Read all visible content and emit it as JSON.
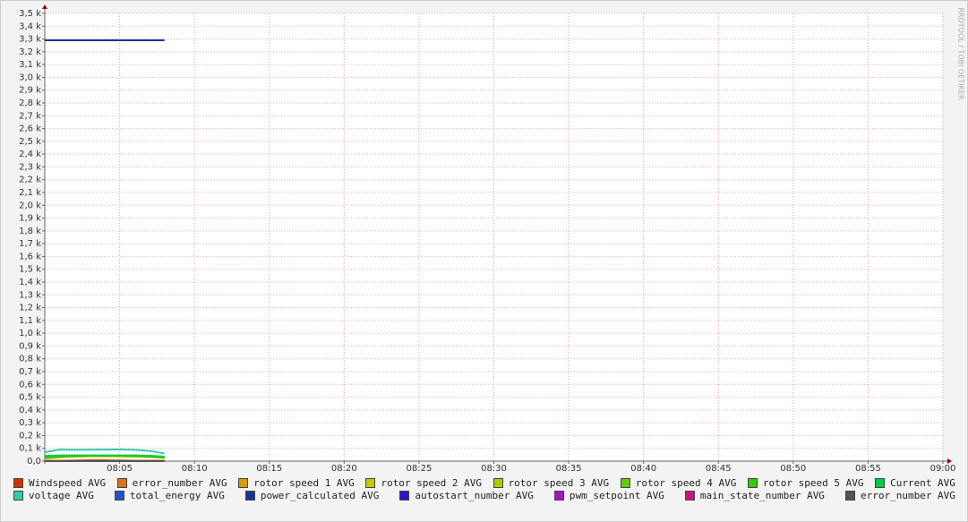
{
  "chart_data": {
    "type": "line",
    "watermark": "RRDTOOL / TOBI OETIKER",
    "x": [
      "08:00",
      "08:01",
      "08:02",
      "08:03",
      "08:04",
      "08:05",
      "08:06",
      "08:07",
      "08:08"
    ],
    "xlim": [
      "08:00",
      "09:00"
    ],
    "xticks": [
      "08:05",
      "08:10",
      "08:15",
      "08:20",
      "08:25",
      "08:30",
      "08:35",
      "08:40",
      "08:45",
      "08:50",
      "08:55",
      "09:00"
    ],
    "ylim": [
      0,
      3500
    ],
    "yticks": [
      {
        "value": 0,
        "label": "0,0"
      },
      {
        "value": 100,
        "label": "0,1 k"
      },
      {
        "value": 200,
        "label": "0,2 k"
      },
      {
        "value": 300,
        "label": "0,3 k"
      },
      {
        "value": 400,
        "label": "0,4 k"
      },
      {
        "value": 500,
        "label": "0,5 k"
      },
      {
        "value": 600,
        "label": "0,6 k"
      },
      {
        "value": 700,
        "label": "0,7 k"
      },
      {
        "value": 800,
        "label": "0,8 k"
      },
      {
        "value": 900,
        "label": "0,9 k"
      },
      {
        "value": 1000,
        "label": "1,0 k"
      },
      {
        "value": 1100,
        "label": "1,1 k"
      },
      {
        "value": 1200,
        "label": "1,2 k"
      },
      {
        "value": 1300,
        "label": "1,3 k"
      },
      {
        "value": 1400,
        "label": "1,4 k"
      },
      {
        "value": 1500,
        "label": "1,5 k"
      },
      {
        "value": 1600,
        "label": "1,6 k"
      },
      {
        "value": 1700,
        "label": "1,7 k"
      },
      {
        "value": 1800,
        "label": "1,8 k"
      },
      {
        "value": 1900,
        "label": "1,9 k"
      },
      {
        "value": 2000,
        "label": "2,0 k"
      },
      {
        "value": 2100,
        "label": "2,1 k"
      },
      {
        "value": 2200,
        "label": "2,2 k"
      },
      {
        "value": 2300,
        "label": "2,3 k"
      },
      {
        "value": 2400,
        "label": "2,4 k"
      },
      {
        "value": 2500,
        "label": "2,5 k"
      },
      {
        "value": 2600,
        "label": "2,6 k"
      },
      {
        "value": 2700,
        "label": "2,7 k"
      },
      {
        "value": 2800,
        "label": "2,8 k"
      },
      {
        "value": 2900,
        "label": "2,9 k"
      },
      {
        "value": 3000,
        "label": "3,0 k"
      },
      {
        "value": 3100,
        "label": "3,1 k"
      },
      {
        "value": 3200,
        "label": "3,2 k"
      },
      {
        "value": 3300,
        "label": "3,3 k"
      },
      {
        "value": 3400,
        "label": "3,4 k"
      },
      {
        "value": 3500,
        "label": "3,5 k"
      }
    ],
    "grid": true,
    "series": [
      {
        "name": "Windspeed AVG",
        "color": "#cc3300",
        "values": [
          3,
          3,
          4,
          6,
          6,
          4,
          3,
          3,
          3
        ]
      },
      {
        "name": "error_number AVG",
        "color": "#e07020",
        "values": [
          0,
          0,
          0,
          0,
          0,
          0,
          0,
          0,
          0
        ]
      },
      {
        "name": "rotor speed 1 AVG",
        "color": "#d4a000",
        "values": [
          20,
          30,
          35,
          38,
          38,
          38,
          36,
          32,
          25
        ]
      },
      {
        "name": "rotor speed 2 AVG",
        "color": "#c8c800",
        "values": [
          20,
          30,
          35,
          38,
          38,
          38,
          36,
          32,
          25
        ]
      },
      {
        "name": "rotor speed 3 AVG",
        "color": "#a8d000",
        "values": [
          22,
          32,
          37,
          40,
          40,
          40,
          38,
          34,
          27
        ]
      },
      {
        "name": "rotor speed 4 AVG",
        "color": "#66cc00",
        "values": [
          25,
          35,
          40,
          42,
          42,
          42,
          40,
          36,
          28
        ]
      },
      {
        "name": "rotor speed 5 AVG",
        "color": "#33cc00",
        "values": [
          25,
          35,
          40,
          42,
          42,
          42,
          40,
          36,
          28
        ]
      },
      {
        "name": "Current AVG",
        "color": "#00cc44",
        "values": [
          40,
          45,
          45,
          45,
          45,
          45,
          45,
          42,
          35
        ]
      },
      {
        "name": "voltage AVG",
        "color": "#33ccaa",
        "values": [
          70,
          90,
          88,
          89,
          90,
          91,
          88,
          80,
          60
        ]
      },
      {
        "name": "total_energy AVG",
        "color": "#2255cc",
        "values": [
          0,
          0,
          0,
          0,
          0,
          0,
          0,
          0,
          0
        ]
      },
      {
        "name": "power_calculated AVG",
        "color": "#1a3399",
        "values": [
          3290,
          3290,
          3290,
          3290,
          3290,
          3290,
          3290,
          3290,
          3290
        ]
      },
      {
        "name": "autostart_number AVG",
        "color": "#3311cc",
        "values": [
          0,
          0,
          0,
          0,
          0,
          0,
          0,
          0,
          0
        ]
      },
      {
        "name": "pwm_setpoint AVG",
        "color": "#aa11cc",
        "values": [
          0,
          0,
          0,
          0,
          0,
          0,
          0,
          0,
          0
        ]
      },
      {
        "name": "main_state_number AVG",
        "color": "#cc1188",
        "values": [
          0,
          0,
          0,
          0,
          0,
          0,
          0,
          0,
          0
        ]
      },
      {
        "name": "error_number AVG",
        "color": "#555555",
        "values": [
          0,
          0,
          0,
          0,
          0,
          0,
          0,
          0,
          0
        ]
      }
    ]
  }
}
